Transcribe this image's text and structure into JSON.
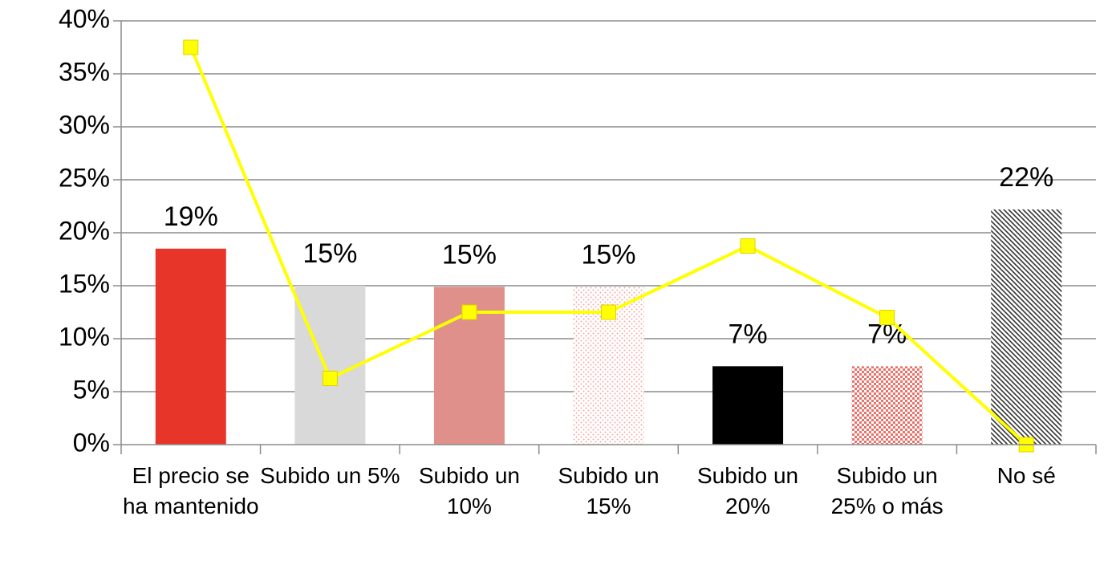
{
  "chart_data": {
    "type": "combo",
    "categories": [
      "El precio se ha mantenido",
      "Subido un 5%",
      "Subido un 10%",
      "Subido un 15%",
      "Subido un 20%",
      "Subido un 25% o más",
      "No sé"
    ],
    "series": [
      {
        "type": "bar",
        "values": [
          18.5,
          15.0,
          14.9,
          14.9,
          7.4,
          7.4,
          22.2
        ],
        "value_labels": [
          "19%",
          "15%",
          "15%",
          "15%",
          "7%",
          "7%",
          "22%"
        ],
        "colors": [
          "#e8352a",
          "#d9d9d9",
          "#e0908a",
          "#f2a9a4",
          "#000000",
          "#e8736b",
          "#333333"
        ],
        "patterns": [
          null,
          null,
          null,
          "dots",
          null,
          "checker",
          "diagonal"
        ]
      },
      {
        "type": "line",
        "color": "#ffff00",
        "values": [
          37.5,
          6.25,
          12.5,
          12.5,
          18.75,
          12.0,
          0
        ]
      }
    ],
    "ylim": [
      0,
      40
    ],
    "yticks": [
      {
        "value": 0,
        "label": "0%"
      },
      {
        "value": 5,
        "label": "5%"
      },
      {
        "value": 10,
        "label": "10%"
      },
      {
        "value": 15,
        "label": "15%"
      },
      {
        "value": 20,
        "label": "20%"
      },
      {
        "value": 25,
        "label": "25%"
      },
      {
        "value": 30,
        "label": "30%"
      },
      {
        "value": 35,
        "label": "35%"
      },
      {
        "value": 40,
        "label": "40%"
      }
    ],
    "grid": true
  }
}
